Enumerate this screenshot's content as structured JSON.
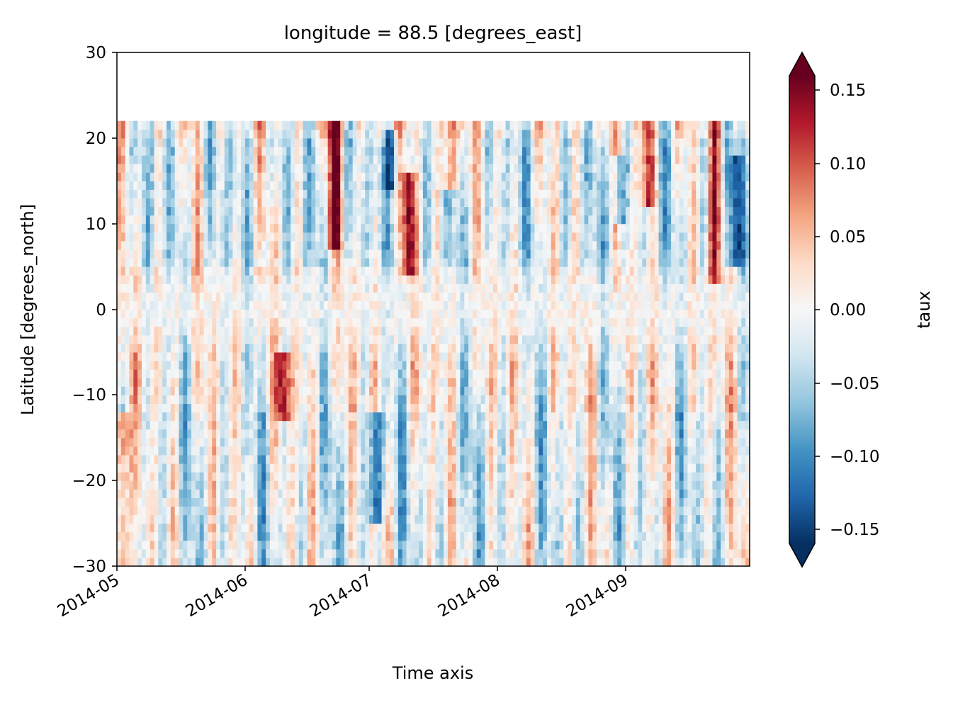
{
  "chart_data": {
    "type": "heatmap",
    "title": "longitude = 88.5 [degrees_east]",
    "xlabel": "Time axis",
    "ylabel": "Latitude [degrees_north]",
    "x_tick_labels": [
      "2014-05",
      "2014-06",
      "2014-07",
      "2014-08",
      "2014-09"
    ],
    "x_range": [
      "2014-05-01",
      "2014-09-30"
    ],
    "y_ticks": [
      30,
      20,
      10,
      0,
      -10,
      -20,
      -30
    ],
    "y_tick_labels": [
      "30",
      "20",
      "10",
      "0",
      "−10",
      "−20",
      "−30"
    ],
    "ylim": [
      -30,
      30
    ],
    "data_lat_range": [
      -30,
      22
    ],
    "colorbar": {
      "label": "taux",
      "colormap": "RdBu_r",
      "vmin": -0.17,
      "vmax": 0.17,
      "extend": "both",
      "ticks": [
        0.15,
        0.1,
        0.05,
        0.0,
        -0.05,
        -0.1,
        -0.15
      ],
      "tick_labels": [
        "0.15",
        "0.10",
        "0.05",
        "0.00",
        "−0.05",
        "−0.10",
        "−0.15"
      ]
    },
    "approx_features": [
      {
        "date": "2014-05-02",
        "lat_range": [
          -30,
          -12
        ],
        "value": 0.15
      },
      {
        "date": "2014-06-10",
        "lat_range": [
          -13,
          -5
        ],
        "value": 0.15
      },
      {
        "date": "2014-06-22",
        "lat_range": [
          7,
          22
        ],
        "value": 0.15
      },
      {
        "date": "2014-07-10",
        "lat_range": [
          4,
          16
        ],
        "value": 0.15
      },
      {
        "date": "2014-07-20",
        "lat_range": [
          14,
          22
        ],
        "value": 0.15
      },
      {
        "date": "2014-09-06",
        "lat_range": [
          12,
          22
        ],
        "value": 0.15
      },
      {
        "date": "2014-09-22",
        "lat_range": [
          3,
          22
        ],
        "value": 0.12
      },
      {
        "date": "2014-07-02",
        "lat_range": [
          -25,
          -12
        ],
        "value": -0.15
      },
      {
        "date": "2014-07-06",
        "lat_range": [
          14,
          21
        ],
        "value": -0.1
      },
      {
        "date": "2014-08-30",
        "lat_range": [
          10,
          18
        ],
        "value": -0.1
      },
      {
        "date": "2014-09-27",
        "lat_range": [
          5,
          18
        ],
        "value": -0.1
      }
    ]
  }
}
